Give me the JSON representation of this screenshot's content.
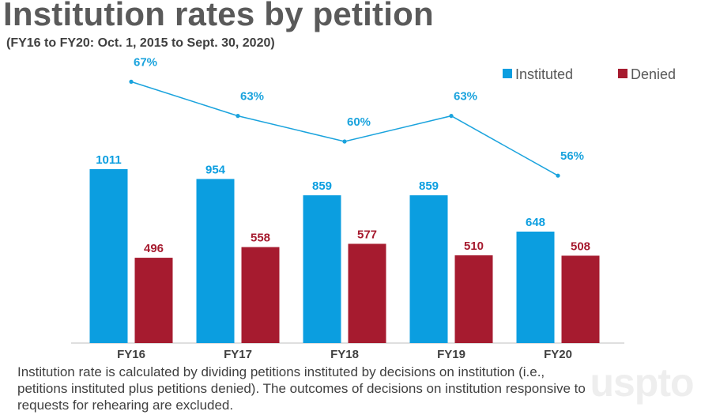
{
  "chart_data": {
    "type": "bar",
    "title_part1": "Institution rates by ",
    "title_part2": "petition",
    "subtitle": "(FY16 to FY20: Oct. 1, 2015 to Sept. 30, 2020)",
    "categories": [
      "FY16",
      "FY17",
      "FY18",
      "FY19",
      "FY20"
    ],
    "series": [
      {
        "name": "Instituted",
        "values": [
          1011,
          954,
          859,
          859,
          648
        ],
        "color": "#0b9ee0"
      },
      {
        "name": "Denied",
        "values": [
          496,
          558,
          577,
          510,
          508
        ],
        "color": "#a61b2f"
      }
    ],
    "rate_line": {
      "name": "Institution rate",
      "values": [
        67,
        63,
        60,
        63,
        56
      ],
      "labels": [
        "67%",
        "63%",
        "60%",
        "63%",
        "56%"
      ],
      "color": "#1aa3dd"
    },
    "legend_position": "top-right",
    "ylim": [
      0,
      1200
    ]
  },
  "footnote": "Institution rate is calculated by dividing petitions instituted by decisions on institution (i.e., petitions instituted plus petitions denied). The outcomes of decisions on institution responsive to requests for rehearing are excluded.",
  "logo_text": "uspto"
}
